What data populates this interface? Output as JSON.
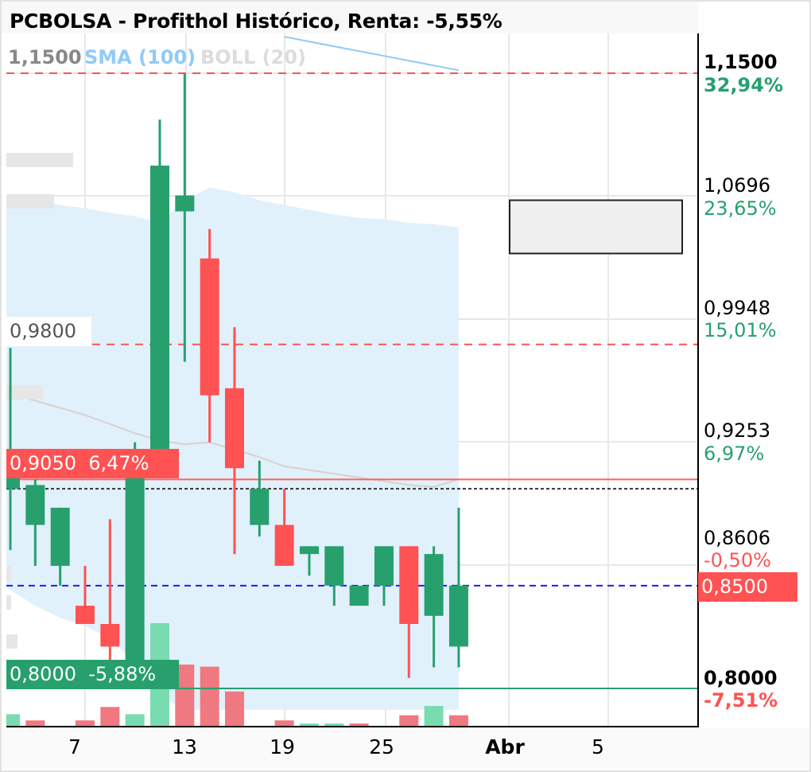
{
  "title": "PCBOLSA - Profithol Histórico, Renta: -5,55%",
  "legend": {
    "top_level_label": "1,1500",
    "sma": "SMA (100)",
    "boll": "BOLL (20)"
  },
  "colors": {
    "up": "#27a06e",
    "down": "#ff5252",
    "vol_up": "#78dcb0",
    "vol_down": "#f07880",
    "band": "#e1f1fb",
    "sma": "#90caf9",
    "current": "#1a1aff"
  },
  "chart_data": {
    "type": "candlestick",
    "y_scale": "log",
    "ylim": [
      0.8,
      1.15
    ],
    "grid": true,
    "x_tick_labels": [
      "7",
      "13",
      "19",
      "25",
      "Abr",
      "5"
    ],
    "candles": [
      {
        "o": 0.9,
        "h": 0.978,
        "l": 0.868,
        "c": 0.906
      },
      {
        "o": 0.881,
        "h": 0.905,
        "l": 0.86,
        "c": 0.902
      },
      {
        "o": 0.86,
        "h": 0.89,
        "l": 0.85,
        "c": 0.89
      },
      {
        "o": 0.84,
        "h": 0.86,
        "l": 0.831,
        "c": 0.831
      },
      {
        "o": 0.831,
        "h": 0.884,
        "l": 0.813,
        "c": 0.82
      },
      {
        "o": 0.801,
        "h": 0.925,
        "l": 0.8,
        "c": 0.919
      },
      {
        "o": 0.906,
        "h": 1.119,
        "l": 0.906,
        "c": 1.089
      },
      {
        "o": 1.06,
        "h": 1.15,
        "l": 0.97,
        "c": 1.07
      },
      {
        "o": 1.031,
        "h": 1.049,
        "l": 0.925,
        "c": 0.951
      },
      {
        "o": 0.955,
        "h": 0.99,
        "l": 0.866,
        "c": 0.911
      },
      {
        "o": 0.881,
        "h": 0.915,
        "l": 0.875,
        "c": 0.9
      },
      {
        "o": 0.881,
        "h": 0.9,
        "l": 0.86,
        "c": 0.86
      },
      {
        "o": 0.866,
        "h": 0.87,
        "l": 0.855,
        "c": 0.87
      },
      {
        "o": 0.85,
        "h": 0.87,
        "l": 0.84,
        "c": 0.87
      },
      {
        "o": 0.84,
        "h": 0.85,
        "l": 0.84,
        "c": 0.85
      },
      {
        "o": 0.85,
        "h": 0.87,
        "l": 0.84,
        "c": 0.87
      },
      {
        "o": 0.87,
        "h": 0.87,
        "l": 0.805,
        "c": 0.831
      },
      {
        "o": 0.835,
        "h": 0.87,
        "l": 0.81,
        "c": 0.866
      },
      {
        "o": 0.82,
        "h": 0.89,
        "l": 0.81,
        "c": 0.85
      }
    ],
    "volume_relative": [
      12,
      6,
      0,
      6,
      19,
      12,
      100,
      60,
      58,
      34,
      0,
      6,
      3,
      3,
      3,
      0,
      11,
      20,
      11
    ],
    "volume_up": [
      true,
      false,
      true,
      false,
      false,
      true,
      true,
      false,
      false,
      false,
      true,
      false,
      true,
      true,
      false,
      true,
      false,
      true,
      false
    ],
    "boll_upper": [
      1.069,
      1.067,
      1.064,
      1.062,
      1.059,
      1.057,
      1.053,
      1.067,
      1.075,
      1.072,
      1.067,
      1.064,
      1.061,
      1.058,
      1.056,
      1.055,
      1.053,
      1.052,
      1.05
    ],
    "boll_lower": [
      0.849,
      0.84,
      0.834,
      0.83,
      0.824,
      0.812,
      0.797,
      0.79,
      0.79,
      0.79,
      0.79,
      0.79,
      0.79,
      0.79,
      0.79,
      0.79,
      0.79,
      0.79,
      0.79
    ],
    "boll_mid": [
      0.952,
      0.948,
      0.944,
      0.94,
      0.935,
      0.93,
      0.926,
      0.924,
      0.925,
      0.921,
      0.917,
      0.912,
      0.91,
      0.908,
      0.906,
      0.904,
      0.902,
      0.901,
      0.905
    ],
    "sma_100": {
      "from_index": 11,
      "to_index": 18,
      "from": 1.175,
      "to": 1.152
    },
    "levels": [
      {
        "price": 1.15,
        "style": "dashed",
        "color": "#ff5252"
      },
      {
        "price": 0.98,
        "style": "dashed",
        "color": "#ff5252"
      },
      {
        "price": 0.905,
        "style": "solid",
        "color": "#ff6060"
      },
      {
        "price": 0.9,
        "style": "dotted",
        "color": "#333333"
      },
      {
        "price": 0.85,
        "style": "dashed",
        "color": "#1a1aff"
      },
      {
        "price": 0.8,
        "style": "solid",
        "color": "#2a9d6f"
      }
    ],
    "box": {
      "top": 1.067,
      "bottom": 1.034
    }
  },
  "left_labels": {
    "level_098": "0,9800",
    "stop_price": "0,9050",
    "stop_pct": "6,47%",
    "support_price": "0,8000",
    "support_pct": "-5,88%"
  },
  "right_axis": [
    {
      "price": "1,1500",
      "pct": "32,94%"
    },
    {
      "price": "1,0696",
      "pct": "23,65%"
    },
    {
      "price": "0,9948",
      "pct": "15,01%"
    },
    {
      "price": "0,9253",
      "pct": "6,97%"
    },
    {
      "price": "0,8606",
      "pct": "-0,50%"
    },
    {
      "price": "0,8000",
      "pct": "-7,51%"
    }
  ],
  "current_price": "0,8500"
}
